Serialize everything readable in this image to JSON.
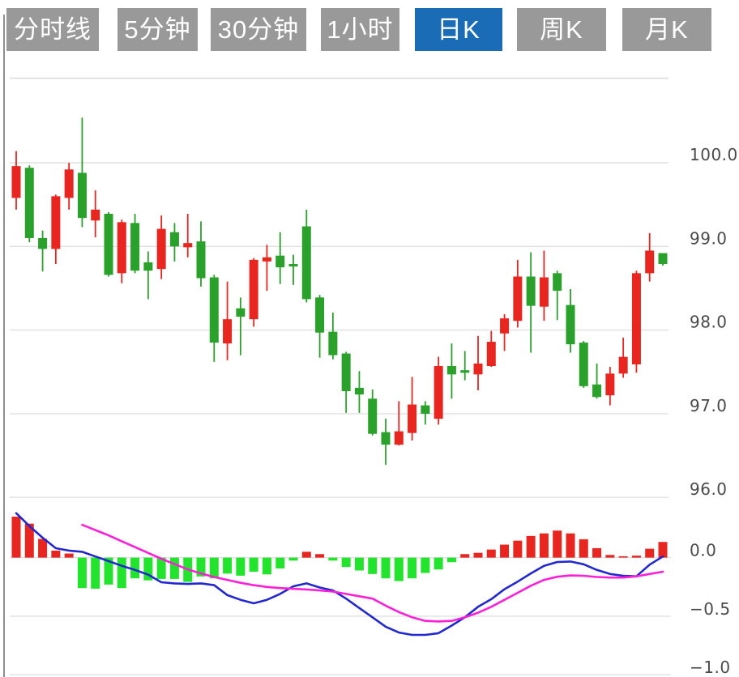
{
  "tabs": {
    "items": [
      {
        "label": "分时线",
        "name": "minute-line",
        "active": false
      },
      {
        "label": "5分钟",
        "name": "5min",
        "active": false
      },
      {
        "label": "30分钟",
        "name": "30min",
        "active": false
      },
      {
        "label": "1小时",
        "name": "1hour",
        "active": false
      },
      {
        "label": "日K",
        "name": "daily-k",
        "active": true
      },
      {
        "label": "周K",
        "name": "weekly-k",
        "active": false
      },
      {
        "label": "月K",
        "name": "monthly-k",
        "active": false
      }
    ]
  },
  "colors": {
    "up": "#e8251f",
    "down": "#2aa12b",
    "hist_up": "#e8251f",
    "hist_down": "#23e42c",
    "dif_line": "#2228cf",
    "dea_line": "#fb1fd7",
    "grid": "#e0e0e0",
    "top_border": "#d8d8d8",
    "left_border": "#8f8f8f",
    "axis_text": "#4a4a4a",
    "tab_bg": "#999999",
    "tab_active_bg": "#1b6cb7",
    "tab_text": "#ffffff",
    "background": "#ffffff"
  },
  "chart_data": {
    "type": "candlestick",
    "subtype": "price-pane with MACD indicator pane",
    "grid": true,
    "legend": false,
    "price_axis": {
      "side": "right",
      "ticks": [
        100.0,
        99.0,
        98.0,
        97.0,
        96.0
      ],
      "tick_labels": [
        "100.0",
        "99.0",
        "98.0",
        "97.0",
        "96.0"
      ],
      "range": [
        95.8,
        101.05
      ]
    },
    "macd_axis": {
      "side": "right",
      "ticks": [
        0.0,
        -0.5,
        -1.0
      ],
      "tick_labels": [
        "0.0",
        "−0.5",
        "−1.0"
      ],
      "range": [
        -1.03,
        0.47
      ]
    },
    "candles_ohlc": [
      [
        99.58,
        100.14,
        99.44,
        99.96
      ],
      [
        99.94,
        99.97,
        99.05,
        99.1
      ],
      [
        99.1,
        99.19,
        98.7,
        98.97
      ],
      [
        98.97,
        99.62,
        98.79,
        99.6
      ],
      [
        99.58,
        100.0,
        99.44,
        99.92
      ],
      [
        99.88,
        100.54,
        99.23,
        99.34
      ],
      [
        99.31,
        99.67,
        99.11,
        99.44
      ],
      [
        99.39,
        99.41,
        98.64,
        98.66
      ],
      [
        98.68,
        99.32,
        98.56,
        99.29
      ],
      [
        99.28,
        99.39,
        98.68,
        98.71
      ],
      [
        98.81,
        98.94,
        98.37,
        98.71
      ],
      [
        98.73,
        99.37,
        98.61,
        99.21
      ],
      [
        99.17,
        99.28,
        98.82,
        99.0
      ],
      [
        98.99,
        99.39,
        98.87,
        99.04
      ],
      [
        99.06,
        99.3,
        98.52,
        98.62
      ],
      [
        98.63,
        98.66,
        97.62,
        97.85
      ],
      [
        97.84,
        98.58,
        97.64,
        98.13
      ],
      [
        98.26,
        98.39,
        97.7,
        98.16
      ],
      [
        98.13,
        98.86,
        98.04,
        98.84
      ],
      [
        98.82,
        99.02,
        98.47,
        98.87
      ],
      [
        98.89,
        99.17,
        98.55,
        98.75
      ],
      [
        98.79,
        98.9,
        98.54,
        98.76
      ],
      [
        99.24,
        99.44,
        98.33,
        98.37
      ],
      [
        98.39,
        98.42,
        97.67,
        97.97
      ],
      [
        97.98,
        98.21,
        97.65,
        97.7
      ],
      [
        97.72,
        97.74,
        97.01,
        97.27
      ],
      [
        97.31,
        97.51,
        97.01,
        97.23
      ],
      [
        97.18,
        97.29,
        96.74,
        96.76
      ],
      [
        96.78,
        96.94,
        96.39,
        96.63
      ],
      [
        96.63,
        97.15,
        96.62,
        96.79
      ],
      [
        96.77,
        97.44,
        96.68,
        97.11
      ],
      [
        97.1,
        97.15,
        96.87,
        97.0
      ],
      [
        96.94,
        97.68,
        96.87,
        97.57
      ],
      [
        97.57,
        97.84,
        97.18,
        97.47
      ],
      [
        97.52,
        97.75,
        97.4,
        97.49
      ],
      [
        97.47,
        97.93,
        97.28,
        97.6
      ],
      [
        97.57,
        97.99,
        97.56,
        97.86
      ],
      [
        97.96,
        98.19,
        97.75,
        98.14
      ],
      [
        98.11,
        98.84,
        98.03,
        98.64
      ],
      [
        98.64,
        98.93,
        97.73,
        98.29
      ],
      [
        98.28,
        98.95,
        98.11,
        98.63
      ],
      [
        98.68,
        98.71,
        98.12,
        98.47
      ],
      [
        98.3,
        98.49,
        97.73,
        97.83
      ],
      [
        97.85,
        97.87,
        97.31,
        97.33
      ],
      [
        97.35,
        97.6,
        97.18,
        97.2
      ],
      [
        97.22,
        97.56,
        97.1,
        97.48
      ],
      [
        97.48,
        97.91,
        97.43,
        97.68
      ],
      [
        97.59,
        98.71,
        97.49,
        98.68
      ],
      [
        98.68,
        99.16,
        98.58,
        98.95
      ],
      [
        98.92,
        98.92,
        98.77,
        98.79
      ]
    ],
    "macd": {
      "histogram": [
        0.35,
        0.29,
        0.16,
        0.06,
        0.035,
        -0.26,
        -0.265,
        -0.23,
        -0.26,
        -0.177,
        -0.194,
        -0.182,
        -0.182,
        -0.207,
        -0.161,
        -0.177,
        -0.136,
        -0.154,
        -0.12,
        -0.143,
        -0.092,
        -0.025,
        0.05,
        0.03,
        -0.025,
        -0.08,
        -0.11,
        -0.14,
        -0.177,
        -0.2,
        -0.177,
        -0.131,
        -0.101,
        -0.039,
        0.03,
        0.041,
        0.069,
        0.111,
        0.145,
        0.185,
        0.207,
        0.231,
        0.207,
        0.157,
        0.081,
        0.023,
        0.012,
        0.017,
        0.076,
        0.134
      ],
      "dif": [
        0.38,
        0.27,
        0.17,
        0.08,
        0.06,
        0.05,
        0.01,
        -0.03,
        -0.07,
        -0.105,
        -0.145,
        -0.21,
        -0.22,
        -0.225,
        -0.22,
        -0.235,
        -0.32,
        -0.36,
        -0.39,
        -0.36,
        -0.31,
        -0.245,
        -0.22,
        -0.255,
        -0.28,
        -0.35,
        -0.43,
        -0.51,
        -0.59,
        -0.64,
        -0.66,
        -0.66,
        -0.645,
        -0.58,
        -0.51,
        -0.42,
        -0.355,
        -0.27,
        -0.205,
        -0.135,
        -0.07,
        -0.037,
        -0.033,
        -0.057,
        -0.105,
        -0.14,
        -0.155,
        -0.16,
        -0.06,
        0.01
      ],
      "dea": [
        null,
        null,
        null,
        null,
        null,
        0.28,
        0.235,
        0.19,
        0.14,
        0.09,
        0.04,
        -0.01,
        -0.055,
        -0.1,
        -0.135,
        -0.165,
        -0.19,
        -0.215,
        -0.235,
        -0.25,
        -0.26,
        -0.266,
        -0.272,
        -0.28,
        -0.29,
        -0.31,
        -0.33,
        -0.35,
        -0.41,
        -0.465,
        -0.51,
        -0.54,
        -0.545,
        -0.54,
        -0.51,
        -0.47,
        -0.42,
        -0.36,
        -0.3,
        -0.24,
        -0.19,
        -0.163,
        -0.152,
        -0.155,
        -0.165,
        -0.17,
        -0.17,
        -0.16,
        -0.14,
        -0.12
      ]
    }
  }
}
